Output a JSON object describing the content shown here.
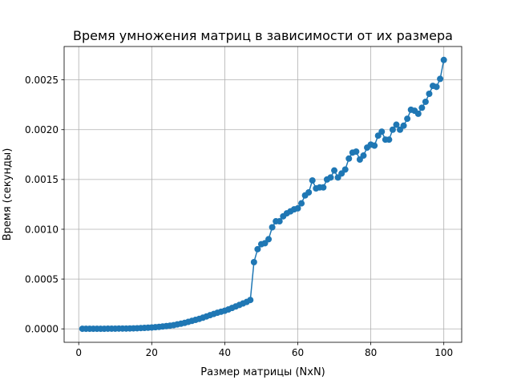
{
  "chart_data": {
    "type": "line",
    "title": "Время умножения матриц в зависимости от их размера",
    "xlabel": "Размер матрицы (NxN)",
    "ylabel": "Время (секунды)",
    "xlim": [
      -4.0,
      104.9
    ],
    "ylim": [
      -0.000135,
      0.002835
    ],
    "x_ticks": [
      0,
      20,
      40,
      60,
      80,
      100
    ],
    "x_tick_labels": [
      "0",
      "20",
      "40",
      "60",
      "80",
      "100"
    ],
    "y_ticks": [
      0.0,
      0.0005,
      0.001,
      0.0015,
      0.002,
      0.0025
    ],
    "y_tick_labels": [
      "0.0000",
      "0.0005",
      "0.0010",
      "0.0015",
      "0.0020",
      "0.0025"
    ],
    "grid": true,
    "marker": "circle",
    "series_color": "#1f77b4",
    "x": [
      1,
      2,
      3,
      4,
      5,
      6,
      7,
      8,
      9,
      10,
      11,
      12,
      13,
      14,
      15,
      16,
      17,
      18,
      19,
      20,
      21,
      22,
      23,
      24,
      25,
      26,
      27,
      28,
      29,
      30,
      31,
      32,
      33,
      34,
      35,
      36,
      37,
      38,
      39,
      40,
      41,
      42,
      43,
      44,
      45,
      46,
      47,
      48,
      49,
      50,
      51,
      52,
      53,
      54,
      55,
      56,
      57,
      58,
      59,
      60,
      61,
      62,
      63,
      64,
      65,
      66,
      67,
      68,
      69,
      70,
      71,
      72,
      73,
      74,
      75,
      76,
      77,
      78,
      79,
      80,
      81,
      82,
      83,
      84,
      85,
      86,
      87,
      88,
      89,
      90,
      91,
      92,
      93,
      94,
      95,
      96,
      97,
      98,
      99,
      100
    ],
    "y": [
      1e-06,
      1e-06,
      1e-06,
      1e-06,
      1e-06,
      1e-06,
      1e-06,
      2e-06,
      2e-06,
      2e-06,
      3e-06,
      3e-06,
      3e-06,
      4e-06,
      5e-06,
      6e-06,
      8e-06,
      1e-05,
      1.2e-05,
      1.4e-05,
      1.7e-05,
      2e-05,
      2.4e-05,
      2.8e-05,
      3.2e-05,
      3.7e-05,
      4.5e-05,
      5.2e-05,
      6e-05,
      7e-05,
      8e-05,
      9e-05,
      0.0001,
      0.000112,
      0.000125,
      0.000138,
      0.00015,
      0.000162,
      0.000172,
      0.000182,
      0.000195,
      0.00021,
      0.000225,
      0.00024,
      0.000255,
      0.00027,
      0.00029,
      0.00067,
      0.0008,
      0.00085,
      0.00086,
      0.0009,
      0.00102,
      0.00108,
      0.00108,
      0.00113,
      0.00116,
      0.00118,
      0.0012,
      0.00121,
      0.00126,
      0.00134,
      0.00137,
      0.00149,
      0.00141,
      0.00142,
      0.00142,
      0.0015,
      0.00152,
      0.00159,
      0.00152,
      0.00156,
      0.0016,
      0.00171,
      0.00177,
      0.00178,
      0.0017,
      0.00174,
      0.00182,
      0.00185,
      0.00184,
      0.00194,
      0.00198,
      0.0019,
      0.0019,
      0.002,
      0.00205,
      0.002,
      0.00204,
      0.00211,
      0.0022,
      0.00219,
      0.00216,
      0.00222,
      0.00228,
      0.00236,
      0.00244,
      0.00243,
      0.00251,
      0.0027
    ]
  }
}
